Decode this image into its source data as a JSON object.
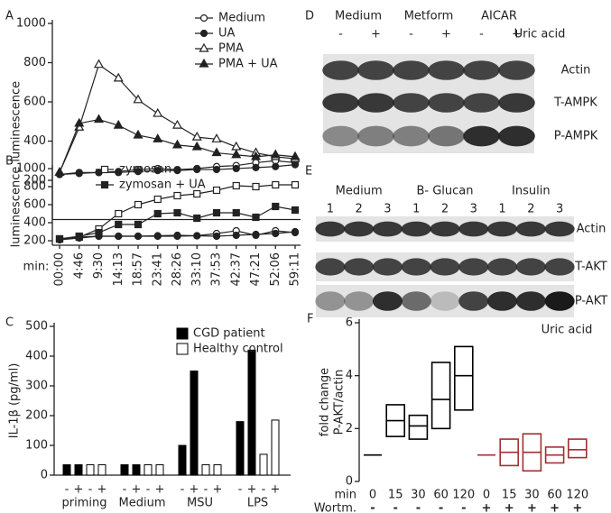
{
  "chart_data": [
    {
      "panel": "A",
      "type": "line",
      "ylabel": "luminescence",
      "ylim": [
        0,
        1000
      ],
      "yticks": [
        200,
        400,
        600,
        800,
        1000
      ],
      "series": [
        {
          "name": "Medium",
          "color": "#222222",
          "marker": "open-circle",
          "values": [
            230,
            240,
            240,
            245,
            255,
            260,
            255,
            260,
            270,
            275,
            290,
            300,
            290
          ]
        },
        {
          "name": "UA",
          "color": "#222222",
          "marker": "filled-circle",
          "values": [
            230,
            235,
            240,
            240,
            245,
            250,
            250,
            255,
            255,
            260,
            265,
            270,
            280
          ]
        },
        {
          "name": "PMA",
          "color": "#222222",
          "marker": "open-triangle",
          "values": [
            240,
            470,
            790,
            720,
            610,
            540,
            480,
            420,
            410,
            370,
            340,
            320,
            310
          ]
        },
        {
          "name": "PMA + UA",
          "color": "#222222",
          "marker": "filled-triangle",
          "values": [
            240,
            490,
            510,
            480,
            430,
            410,
            380,
            370,
            340,
            330,
            320,
            330,
            320
          ]
        }
      ]
    },
    {
      "panel": "B",
      "type": "line",
      "ylabel": "luminescence",
      "xlabel": "min:",
      "categories": [
        "00:00",
        "4:46",
        "9:30",
        "14:13",
        "18:57",
        "23:41",
        "28:26",
        "33:10",
        "37:53",
        "42:37",
        "47:21",
        "52:06",
        "59:11"
      ],
      "ylim": [
        150,
        1000
      ],
      "yticks": [
        200,
        400,
        600,
        800,
        1000
      ],
      "series": [
        {
          "name": "zymosan",
          "color": "#222222",
          "marker": "open-square",
          "values": [
            220,
            240,
            330,
            500,
            600,
            660,
            700,
            720,
            760,
            810,
            800,
            820,
            820
          ]
        },
        {
          "name": "zymosan + UA",
          "color": "#222222",
          "marker": "filled-square",
          "values": [
            220,
            250,
            290,
            380,
            380,
            500,
            510,
            450,
            510,
            510,
            460,
            580,
            540
          ]
        },
        {
          "color": "#222222",
          "marker": "open-circle",
          "values": [
            220,
            240,
            250,
            250,
            250,
            255,
            260,
            255,
            280,
            310,
            260,
            310,
            290
          ]
        },
        {
          "color": "#222222",
          "marker": "filled-circle",
          "values": [
            210,
            230,
            250,
            250,
            250,
            250,
            250,
            255,
            250,
            260,
            270,
            280,
            300
          ]
        }
      ]
    },
    {
      "panel": "C",
      "type": "bar",
      "ylabel": "IL-1β (pg/ml)",
      "categories": [
        "priming",
        "Medium",
        "MSU",
        "LPS"
      ],
      "sublabels": [
        "-",
        "+"
      ],
      "ylim": [
        0,
        500
      ],
      "yticks": [
        0,
        100,
        200,
        300,
        400,
        500
      ],
      "series": [
        {
          "name": "CGD patient",
          "color": "#000000",
          "values": [
            [
              35,
              35
            ],
            [
              35,
              35
            ],
            [
              100,
              350
            ],
            [
              180,
              420
            ]
          ]
        },
        {
          "name": "Healthy control",
          "color": "#ffffff",
          "values": [
            [
              35,
              35
            ],
            [
              35,
              35
            ],
            [
              35,
              35
            ],
            [
              70,
              185
            ]
          ]
        }
      ]
    },
    {
      "panel": "F",
      "type": "range",
      "ylabel": [
        "fold change",
        "P-AKT/actin"
      ],
      "annotation": "Uric acid",
      "xlabel": "min",
      "treatment_label": "Wortm.",
      "categories": [
        "0",
        "15",
        "30",
        "60",
        "120",
        "0",
        "15",
        "30",
        "60",
        "120"
      ],
      "treatment": [
        "-",
        "-",
        "-",
        "-",
        "-",
        "+",
        "+",
        "+",
        "+",
        "+"
      ],
      "colors": [
        "#000000",
        "#000000",
        "#000000",
        "#000000",
        "#000000",
        "#a03030",
        "#a03030",
        "#a03030",
        "#a03030",
        "#a03030"
      ],
      "ylim": [
        0,
        6
      ],
      "yticks": [
        0,
        2,
        4,
        6
      ],
      "values": [
        [
          1,
          1,
          1
        ],
        [
          1.7,
          2.3,
          2.9
        ],
        [
          1.6,
          2.1,
          2.5
        ],
        [
          2.0,
          3.1,
          4.5
        ],
        [
          2.7,
          4.0,
          5.1
        ],
        [
          1,
          1,
          1
        ],
        [
          0.6,
          1.1,
          1.6
        ],
        [
          0.4,
          1.1,
          1.8
        ],
        [
          0.7,
          1.0,
          1.3
        ],
        [
          0.9,
          1.2,
          1.6
        ]
      ]
    }
  ],
  "blots": [
    {
      "panel": "D",
      "groups": [
        "Medium",
        "Metform",
        "AICAR"
      ],
      "annotation": "Uric acid",
      "lanes": [
        "-",
        "+",
        "-",
        "+",
        "-",
        "+"
      ],
      "rows": [
        "Actin",
        "T-AMPK",
        "P-AMPK"
      ]
    },
    {
      "panel": "E",
      "groups": [
        "Medium",
        "B- Glucan",
        "Insulin"
      ],
      "lanes": [
        "1",
        "2",
        "3",
        "1",
        "2",
        "3",
        "1",
        "2",
        "3"
      ],
      "rows": [
        "Actin",
        "T-AKT",
        "P-AKT"
      ]
    }
  ]
}
